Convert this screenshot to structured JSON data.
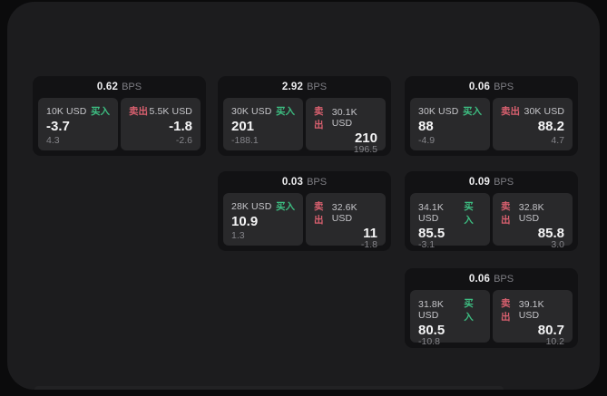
{
  "labels": {
    "bps": "BPS",
    "buy": "买入",
    "sell": "卖出"
  },
  "colors": {
    "background": "#0b0b0c",
    "window_bg": "#1c1c1e",
    "card_bg": "#121214",
    "tile_bg": "#29292b",
    "buy_green": "#3dbd81",
    "sell_red": "#d9606f",
    "price_text": "#f4f4f5",
    "muted_text": "#85858a"
  },
  "cards": [
    {
      "bps": "0.62",
      "buy": {
        "amount": "10K USD",
        "value": "-3.7",
        "delta": "4.3"
      },
      "sell": {
        "amount": "5.5K USD",
        "value": "-1.8",
        "delta": "-2.6"
      }
    },
    {
      "bps": "2.92",
      "buy": {
        "amount": "30K USD",
        "value": "201",
        "delta": "-188.1"
      },
      "sell": {
        "amount": "30.1K USD",
        "value": "210",
        "delta": "196.5"
      }
    },
    {
      "bps": "0.06",
      "buy": {
        "amount": "30K USD",
        "value": "88",
        "delta": "-4.9"
      },
      "sell": {
        "amount": "30K USD",
        "value": "88.2",
        "delta": "4.7"
      }
    },
    {
      "bps": "0.03",
      "buy": {
        "amount": "28K USD",
        "value": "10.9",
        "delta": "1.3"
      },
      "sell": {
        "amount": "32.6K USD",
        "value": "11",
        "delta": "-1.8"
      }
    },
    {
      "bps": "0.09",
      "buy": {
        "amount": "34.1K USD",
        "value": "85.5",
        "delta": "-3.1"
      },
      "sell": {
        "amount": "32.8K USD",
        "value": "85.8",
        "delta": "3.0"
      }
    },
    {
      "bps": "0.06",
      "buy": {
        "amount": "31.8K USD",
        "value": "80.5",
        "delta": "-10.8"
      },
      "sell": {
        "amount": "39.1K USD",
        "value": "80.7",
        "delta": "10.2"
      }
    }
  ]
}
